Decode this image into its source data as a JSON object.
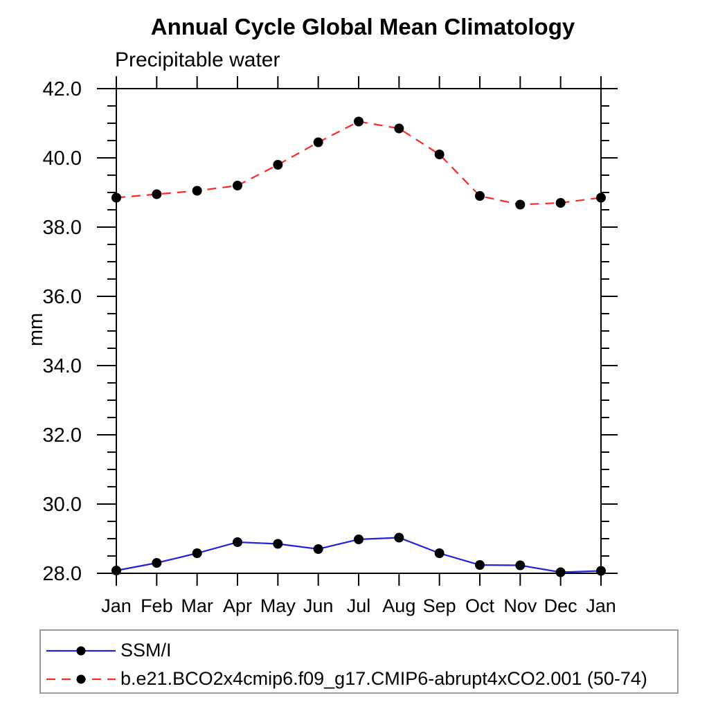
{
  "title": "Annual Cycle Global Mean Climatology",
  "subtitle": "Precipitable water",
  "chart_data": {
    "type": "line",
    "title": "Annual Cycle Global Mean Climatology",
    "subtitle": "Precipitable water",
    "ylabel": "mm",
    "categories": [
      "Jan",
      "Feb",
      "Mar",
      "Apr",
      "May",
      "Jun",
      "Jul",
      "Aug",
      "Sep",
      "Oct",
      "Nov",
      "Dec",
      "Jan"
    ],
    "series": [
      {
        "name": "SSM/I",
        "color": "#2020dd",
        "line_style": "solid",
        "marker": "filled-circle",
        "marker_color": "#000000",
        "values": [
          28.08,
          28.3,
          28.58,
          28.9,
          28.85,
          28.7,
          28.98,
          29.03,
          28.58,
          28.24,
          28.23,
          28.03,
          28.07
        ]
      },
      {
        "name": "b.e21.BCO2x4cmip6.f09_g17.CMIP6-abrupt4xCO2.001 (50-74)",
        "color": "#fa2828",
        "line_style": "dashed",
        "marker": "filled-circle",
        "marker_color": "#000000",
        "values": [
          38.85,
          38.95,
          39.05,
          39.2,
          39.8,
          40.45,
          41.05,
          40.85,
          40.1,
          38.9,
          38.65,
          38.7,
          38.85
        ]
      }
    ],
    "ylim": [
      28.0,
      42.0
    ],
    "y_major_ticks": [
      28,
      30,
      32,
      34,
      36,
      38,
      40,
      42
    ],
    "y_tick_labels": [
      "28.0",
      "30.0",
      "32.0",
      "34.0",
      "36.0",
      "38.0",
      "40.0",
      "42.0"
    ],
    "y_minor_step": 0.5,
    "grid": false,
    "legend_position": "bottom-box",
    "axis_color": "#000000",
    "background": "#ffffff"
  }
}
